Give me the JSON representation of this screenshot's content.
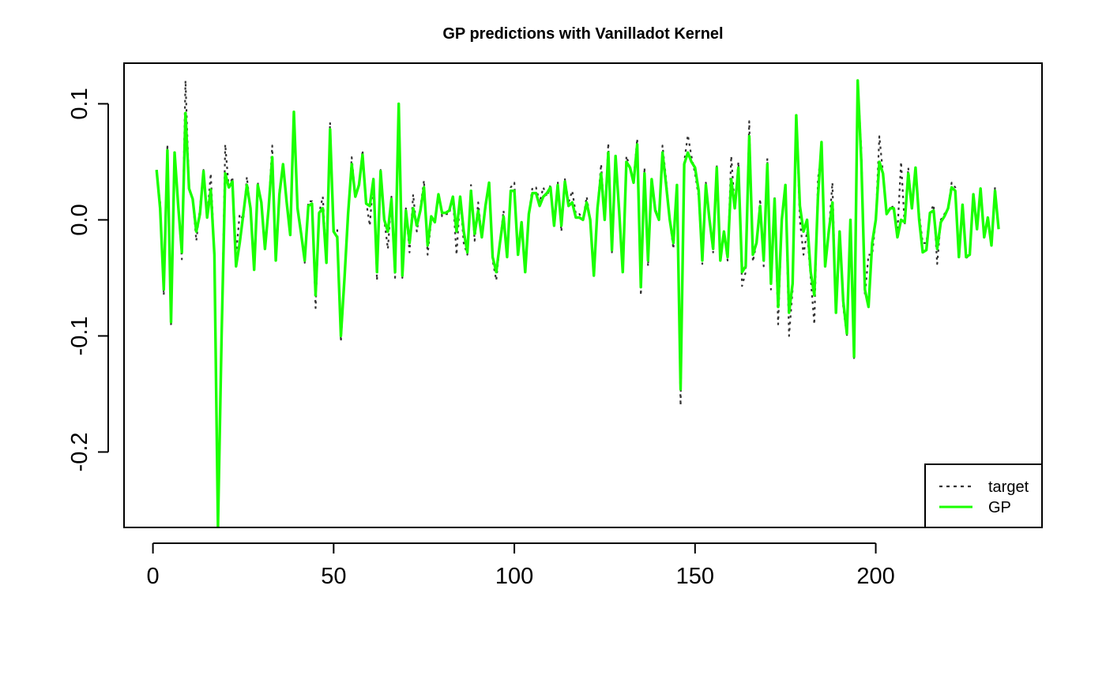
{
  "chart_data": {
    "type": "line",
    "title": "GP predictions with Vanilladot Kernel",
    "xlabel": "",
    "ylabel": "",
    "xlim": [
      -8,
      246
    ],
    "ylim": [
      -0.265,
      0.135
    ],
    "x_ticks": [
      0,
      50,
      100,
      150,
      200
    ],
    "x_tick_labels": [
      "0",
      "50",
      "100",
      "150",
      "200"
    ],
    "y_ticks": [
      -0.2,
      -0.1,
      0.0,
      0.1
    ],
    "y_tick_labels": [
      "-0.2",
      "-0.1",
      "0.0",
      "0.1"
    ],
    "grid": false,
    "legend": {
      "position": "bottom-right",
      "entries": [
        {
          "label": "target",
          "style": "dotted",
          "color": "#333333"
        },
        {
          "label": "GP",
          "style": "solid",
          "color": "#1aff00"
        }
      ]
    },
    "x_start": 1,
    "x_step": 1,
    "series": [
      {
        "name": "target",
        "color": "#333333",
        "values": [
          0.043,
          0.015,
          -0.065,
          0.065,
          -0.092,
          0.058,
          0.012,
          -0.034,
          0.12,
          0.028,
          0.018,
          -0.018,
          0.01,
          0.043,
          0.002,
          0.04,
          -0.03,
          -0.265,
          -0.1,
          0.065,
          0.026,
          0.037,
          -0.03,
          0.005,
          0.0,
          0.037,
          0.008,
          -0.043,
          0.032,
          0.015,
          -0.02,
          0.01,
          0.064,
          -0.037,
          0.025,
          0.048,
          0.015,
          -0.013,
          0.093,
          0.012,
          -0.01,
          -0.037,
          0.016,
          0.016,
          -0.076,
          0.006,
          0.02,
          -0.035,
          0.084,
          -0.01,
          -0.008,
          -0.105,
          -0.05,
          0.005,
          0.054,
          0.02,
          0.03,
          0.06,
          0.016,
          -0.005,
          0.037,
          -0.052,
          0.043,
          0.0,
          -0.025,
          0.02,
          -0.05,
          0.1,
          -0.05,
          0.01,
          -0.028,
          0.022,
          -0.01,
          0.01,
          0.034,
          -0.03,
          0.0,
          0.0,
          0.023,
          0.003,
          0.005,
          0.005,
          0.02,
          -0.03,
          0.02,
          -0.02,
          -0.03,
          0.03,
          -0.018,
          0.015,
          -0.015,
          0.01,
          0.032,
          -0.035,
          -0.052,
          -0.02,
          0.008,
          -0.034,
          0.028,
          0.032,
          -0.032,
          0.0,
          -0.045,
          0.005,
          0.028,
          0.028,
          0.015,
          0.028,
          0.02,
          0.03,
          -0.005,
          0.033,
          -0.01,
          0.035,
          0.015,
          0.025,
          0.005,
          0.005,
          0.0,
          0.02,
          0.0,
          -0.05,
          0.01,
          0.048,
          0.0,
          0.066,
          -0.028,
          0.055,
          0.01,
          -0.046,
          0.055,
          0.045,
          0.035,
          0.07,
          -0.065,
          0.045,
          -0.04,
          0.037,
          0.01,
          0.0,
          0.064,
          0.035,
          0.0,
          -0.025,
          0.03,
          -0.16,
          0.05,
          0.073,
          0.055,
          0.04,
          0.02,
          -0.038,
          0.032,
          0.0,
          -0.028,
          0.047,
          -0.035,
          -0.01,
          -0.035,
          0.055,
          0.01,
          0.05,
          -0.057,
          -0.045,
          0.085,
          -0.036,
          -0.02,
          0.018,
          -0.04,
          0.053,
          -0.06,
          0.02,
          -0.09,
          0.0,
          0.03,
          -0.1,
          -0.06,
          0.09,
          0.0,
          -0.03,
          -0.01,
          -0.05,
          -0.09,
          0.035,
          0.06,
          -0.04,
          -0.01,
          0.032,
          -0.08,
          -0.01,
          -0.075,
          -0.1,
          0.0,
          -0.12,
          0.12,
          0.06,
          -0.065,
          -0.03,
          -0.03,
          0.0,
          0.072,
          0.04,
          0.005,
          0.01,
          0.012,
          -0.01,
          0.05,
          -0.005,
          0.045,
          0.01,
          0.045,
          0.005,
          -0.02,
          -0.02,
          0.006,
          0.013,
          -0.038,
          0.0,
          0.005,
          0.01,
          0.032,
          0.028,
          -0.03,
          0.012,
          -0.033,
          -0.03,
          0.02,
          -0.005,
          0.026,
          -0.015,
          0.0,
          -0.023,
          0.028,
          -0.008
        ]
      },
      {
        "name": "GP",
        "color": "#1aff00",
        "values": [
          0.043,
          0.01,
          -0.06,
          0.06,
          -0.088,
          0.058,
          0.012,
          -0.028,
          0.092,
          0.027,
          0.018,
          -0.01,
          0.005,
          0.042,
          0.002,
          0.026,
          -0.03,
          -0.265,
          -0.1,
          0.04,
          0.028,
          0.033,
          -0.04,
          -0.02,
          0.005,
          0.03,
          0.01,
          -0.043,
          0.03,
          0.015,
          -0.025,
          0.01,
          0.054,
          -0.035,
          0.022,
          0.048,
          0.015,
          -0.013,
          0.093,
          0.01,
          -0.012,
          -0.035,
          0.012,
          0.014,
          -0.065,
          0.006,
          0.01,
          -0.037,
          0.078,
          -0.01,
          -0.015,
          -0.1,
          -0.05,
          0.005,
          0.048,
          0.02,
          0.03,
          0.056,
          0.014,
          0.012,
          0.035,
          -0.045,
          0.042,
          0.0,
          -0.01,
          0.018,
          -0.045,
          0.1,
          -0.048,
          0.008,
          -0.02,
          0.01,
          -0.005,
          0.008,
          0.028,
          -0.022,
          0.003,
          -0.002,
          0.022,
          0.006,
          0.006,
          0.008,
          0.02,
          -0.01,
          0.02,
          -0.01,
          -0.028,
          0.025,
          -0.012,
          0.008,
          -0.015,
          0.012,
          0.032,
          -0.032,
          -0.045,
          -0.02,
          0.003,
          -0.032,
          0.025,
          0.025,
          -0.03,
          -0.002,
          -0.045,
          0.005,
          0.023,
          0.023,
          0.012,
          0.02,
          0.023,
          0.028,
          -0.005,
          0.03,
          -0.005,
          0.033,
          0.012,
          0.015,
          0.002,
          0.002,
          0.0,
          0.015,
          0.0,
          -0.048,
          0.01,
          0.04,
          0.0,
          0.058,
          -0.026,
          0.055,
          0.008,
          -0.045,
          0.05,
          0.045,
          0.032,
          0.065,
          -0.058,
          0.04,
          -0.035,
          0.035,
          0.008,
          0.0,
          0.058,
          0.03,
          0.0,
          -0.02,
          0.03,
          -0.146,
          0.048,
          0.058,
          0.05,
          0.045,
          0.025,
          -0.035,
          0.03,
          0.0,
          -0.025,
          0.045,
          -0.035,
          -0.01,
          -0.032,
          0.035,
          0.01,
          0.045,
          -0.045,
          -0.04,
          0.072,
          -0.03,
          -0.02,
          0.012,
          -0.035,
          0.048,
          -0.055,
          0.018,
          -0.075,
          0.0,
          0.03,
          -0.08,
          -0.055,
          0.09,
          0.012,
          -0.01,
          0.0,
          -0.045,
          -0.065,
          0.02,
          0.067,
          -0.04,
          -0.01,
          0.015,
          -0.08,
          -0.01,
          -0.07,
          -0.098,
          0.0,
          -0.118,
          0.12,
          0.05,
          -0.06,
          -0.075,
          -0.02,
          0.0,
          0.05,
          0.04,
          0.005,
          0.01,
          0.01,
          -0.015,
          0.0,
          -0.002,
          0.04,
          0.01,
          0.045,
          0.0,
          -0.028,
          -0.026,
          0.006,
          0.008,
          -0.025,
          -0.002,
          0.003,
          0.01,
          0.028,
          0.025,
          -0.032,
          0.013,
          -0.032,
          -0.03,
          0.022,
          -0.008,
          0.027,
          -0.015,
          0.002,
          -0.022,
          0.025,
          -0.008
        ]
      }
    ]
  }
}
